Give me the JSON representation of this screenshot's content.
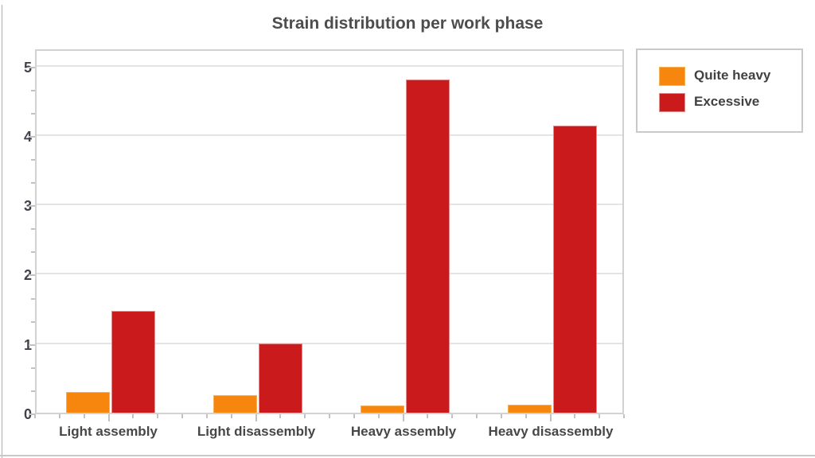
{
  "chart_data": {
    "type": "bar",
    "title": "Strain distribution per work phase",
    "categories": [
      "Light assembly",
      "Light disassembly",
      "Heavy assembly",
      "Heavy disassembly"
    ],
    "series": [
      {
        "name": "Quite heavy",
        "color": "#f6860d",
        "border_color": "#f9b055",
        "values": [
          0.3,
          0.25,
          0.1,
          0.12
        ]
      },
      {
        "name": "Excessive",
        "color": "#cb1a1b",
        "border_color": "#e28c8c",
        "values": [
          1.47,
          1.0,
          4.8,
          4.14
        ]
      }
    ],
    "xlabel": "",
    "ylabel": "",
    "ylim": [
      0,
      5.26
    ],
    "y_ticks": [
      0,
      1,
      2,
      3,
      4,
      5
    ],
    "grid": "horizontal-major",
    "legend_position": "outside-top-right"
  },
  "colors": {
    "plot_border": "#d2d2d2",
    "gridline": "#e4e4e4",
    "tick": "#c2c2c2",
    "title_text": "#4d4d4d",
    "axis_text": "#474747",
    "legend_border": "#c9c9c9",
    "background": "#ffffff"
  }
}
